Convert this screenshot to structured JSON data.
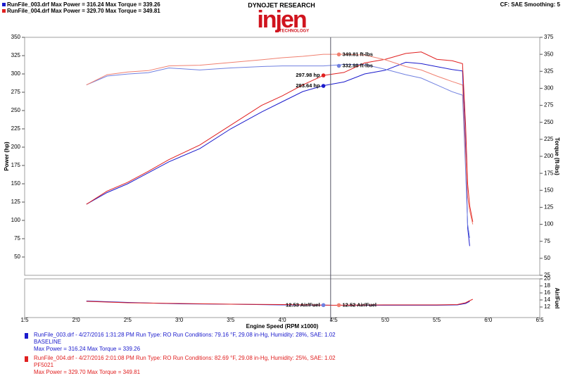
{
  "header": {
    "run1": "RunFile_003.drf Max Power = 316.24     Max Torque = 339.26",
    "run2": "RunFile_004.drf Max Power = 329.70     Max Torque = 349.81",
    "brand": "DYNOJET RESEARCH",
    "logo": "injen",
    "logo_sub": "TECHNOLOGY",
    "settings": "CF: SAE  Smoothing: 5"
  },
  "legend": [
    {
      "color": "#1a1acc",
      "lines": [
        "RunFile_003.drf - 4/27/2016 1:31:28 PM  Run Type: RO  Run Conditions: 79.16 °F, 29.08 in-Hg,  Humidity:  28%, SAE: 1.02",
        "BASELINE",
        "Max Power = 316.24   Max Torque = 339.26"
      ]
    },
    {
      "color": "#e02020",
      "lines": [
        "RunFile_004.drf - 4/27/2016 2:01:08 PM  Run Type: RO  Run Conditions: 82.69 °F, 29.08 in-Hg,  Humidity:  25%, SAE: 1.02",
        "PF5021",
        "Max Power = 329.70   Max Torque = 349.81"
      ]
    }
  ],
  "chart_data": [
    {
      "type": "line",
      "y_label": "Power (hp)",
      "y2_label": "Torque (ft-lbs)",
      "x": [
        2.1,
        2.3,
        2.5,
        2.7,
        2.9,
        3.2,
        3.5,
        3.8,
        4.0,
        4.2,
        4.4,
        4.6,
        4.8,
        5.0,
        5.2,
        5.35,
        5.5,
        5.65,
        5.75,
        5.78,
        5.8,
        5.82,
        5.85
      ],
      "xlim": [
        1.5,
        6.5
      ],
      "ylim": [
        25,
        350
      ],
      "yticks": [
        50,
        75,
        100,
        125,
        150,
        175,
        200,
        225,
        250,
        275,
        300,
        325,
        350
      ],
      "y2lim": [
        25,
        375
      ],
      "y2ticks": [
        25,
        50,
        75,
        100,
        125,
        150,
        175,
        200,
        225,
        250,
        275,
        300,
        325,
        350,
        375
      ],
      "cursor_x": 4.47,
      "series": [
        {
          "color": "#1a1acc",
          "values": [
            122,
            138,
            150,
            165,
            180,
            198,
            225,
            248,
            262,
            276,
            284,
            289,
            300,
            305,
            316,
            314,
            310,
            306,
            304,
            200,
            90,
            65,
            null
          ]
        },
        {
          "color": "#e02020",
          "values": [
            122,
            140,
            152,
            167,
            183,
            203,
            230,
            257,
            270,
            285,
            298,
            302,
            315,
            320,
            328,
            330,
            320,
            318,
            314,
            230,
            150,
            120,
            98
          ]
        },
        {
          "color": "#7080e0",
          "axis": "y2",
          "values": [
            305,
            318,
            321,
            323,
            330,
            327,
            330,
            332,
            333,
            333,
            333,
            335,
            335,
            328,
            320,
            315,
            305,
            295,
            290,
            180,
            100,
            80,
            null
          ]
        },
        {
          "color": "#f08070",
          "axis": "y2",
          "values": [
            305,
            320,
            324,
            326,
            333,
            334,
            338,
            342,
            345,
            347,
            350,
            350,
            349,
            342,
            332,
            327,
            318,
            310,
            305,
            200,
            140,
            120,
            100
          ]
        }
      ],
      "markers": [
        {
          "x": 4.4,
          "value": 283.64,
          "label": "283.64 hp",
          "color": "#1a1acc"
        },
        {
          "x": 4.4,
          "value": 297.98,
          "label": "297.98 hp",
          "color": "#e02020"
        },
        {
          "x": 4.55,
          "value": 332.98,
          "label": "332.98 ft-lbs",
          "color": "#7080e0",
          "axis": "y2"
        },
        {
          "x": 4.55,
          "value": 349.81,
          "label": "349.81 ft-lbs",
          "color": "#f08070",
          "axis": "y2"
        }
      ]
    },
    {
      "type": "line",
      "y_label": "Air/Fuel",
      "x_label": "Engine Speed (RPM x1000)",
      "x": [
        2.1,
        2.5,
        3.0,
        3.5,
        4.0,
        4.5,
        5.0,
        5.5,
        5.7,
        5.78,
        5.82,
        5.85
      ],
      "xlim": [
        1.5,
        6.5
      ],
      "xticks": [
        1.5,
        {
          "value": 2,
          "label": "2.0"
        },
        2.5,
        {
          "value": 3,
          "label": "3.0"
        },
        3.5,
        {
          "value": 4,
          "label": "4.0"
        },
        4.5,
        {
          "value": 5,
          "label": "5.0"
        },
        5.5,
        {
          "value": 6,
          "label": "6.0"
        },
        6.5
      ],
      "ylim": [
        9,
        20
      ],
      "yticks": [
        12,
        14,
        16,
        18,
        20
      ],
      "series": [
        {
          "color": "#1a1acc",
          "values": [
            13.7,
            13.3,
            12.9,
            12.8,
            12.6,
            12.5,
            12.5,
            12.5,
            12.6,
            13.0,
            13.6,
            null
          ]
        },
        {
          "color": "#e02020",
          "values": [
            13.6,
            13.2,
            13.0,
            12.8,
            12.7,
            12.5,
            12.6,
            12.6,
            12.7,
            13.2,
            13.8,
            14.2
          ]
        }
      ],
      "markers": [
        {
          "x": 4.4,
          "value": 12.53,
          "label": "12.53 Air/Fuel",
          "color": "#7080e0"
        },
        {
          "x": 4.55,
          "value": 12.52,
          "label": "12.52 Air/Fuel",
          "color": "#f08070"
        }
      ]
    }
  ]
}
